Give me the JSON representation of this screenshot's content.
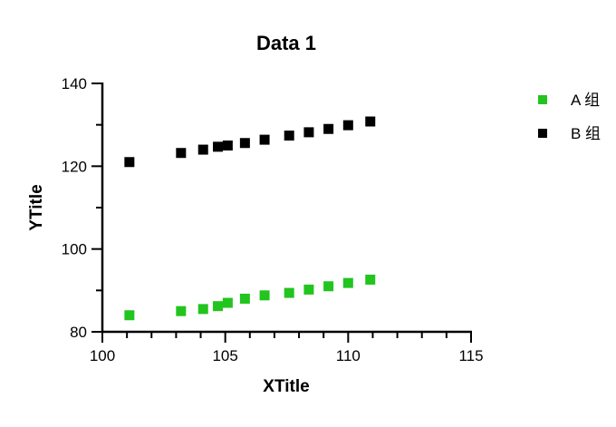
{
  "chart_data": {
    "type": "scatter",
    "title": "Data 1",
    "xlabel": "XTitle",
    "ylabel": "YTitle",
    "xlim": [
      100,
      115
    ],
    "ylim": [
      80,
      140
    ],
    "xticks": [
      100,
      105,
      110,
      115
    ],
    "yticks": [
      80,
      100,
      120,
      140
    ],
    "x_minor_step": 1,
    "y_minor_step": 10,
    "grid": false,
    "legend_position": "top-right",
    "marker": "square",
    "series": [
      {
        "name": "A 组",
        "color": "#22c41e",
        "points": [
          [
            101.1,
            84.0
          ],
          [
            103.2,
            85.0
          ],
          [
            104.1,
            85.5
          ],
          [
            104.7,
            86.2
          ],
          [
            105.1,
            87.0
          ],
          [
            105.8,
            88.0
          ],
          [
            106.6,
            88.8
          ],
          [
            107.6,
            89.4
          ],
          [
            108.4,
            90.2
          ],
          [
            109.2,
            91.0
          ],
          [
            110.0,
            91.8
          ],
          [
            110.9,
            92.6
          ]
        ]
      },
      {
        "name": "B 组",
        "color": "#000000",
        "points": [
          [
            101.1,
            121.0
          ],
          [
            103.2,
            123.2
          ],
          [
            104.1,
            124.0
          ],
          [
            104.7,
            124.7
          ],
          [
            105.1,
            125.0
          ],
          [
            105.8,
            125.6
          ],
          [
            106.6,
            126.4
          ],
          [
            107.6,
            127.4
          ],
          [
            108.4,
            128.2
          ],
          [
            109.2,
            129.0
          ],
          [
            110.0,
            129.9
          ],
          [
            110.9,
            130.8
          ]
        ]
      }
    ]
  }
}
